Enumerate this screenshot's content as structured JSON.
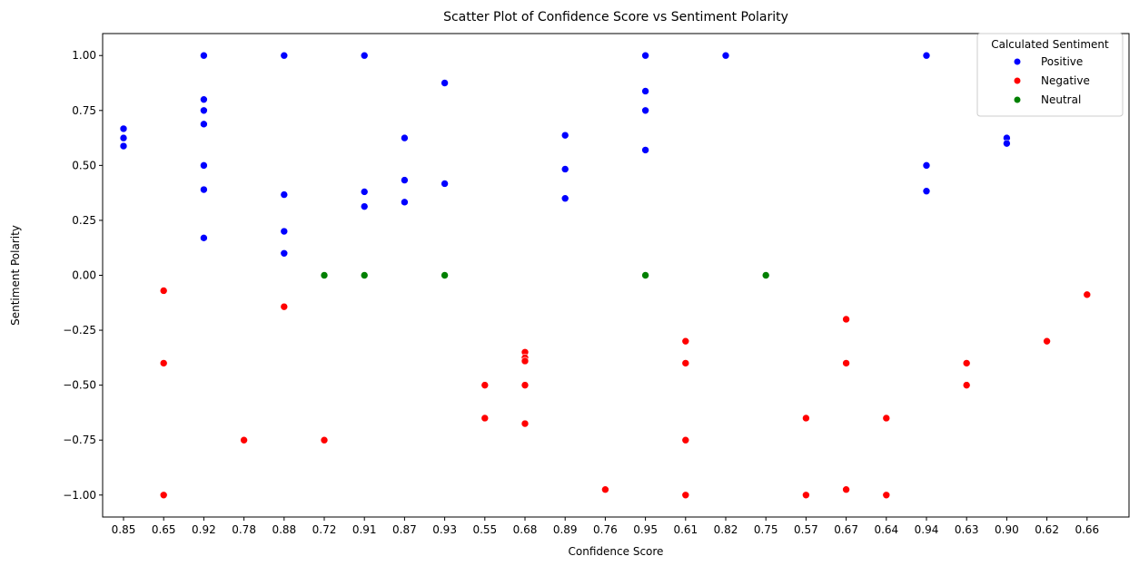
{
  "chart_data": {
    "type": "scatter",
    "title": "Scatter Plot of Confidence Score vs Sentiment Polarity",
    "xlabel": "Confidence Score",
    "ylabel": "Sentiment Polarity",
    "x_categories": [
      "0.85",
      "0.65",
      "0.92",
      "0.78",
      "0.88",
      "0.72",
      "0.91",
      "0.87",
      "0.93",
      "0.55",
      "0.68",
      "0.89",
      "0.76",
      "0.95",
      "0.61",
      "0.82",
      "0.75",
      "0.57",
      "0.67",
      "0.64",
      "0.94",
      "0.63",
      "0.90",
      "0.62",
      "0.66"
    ],
    "ylim": [
      -1.1,
      1.1
    ],
    "yticks": [
      "1.00",
      "0.75",
      "0.50",
      "0.25",
      "0.00",
      "−0.25",
      "−0.50",
      "−0.75",
      "−1.00"
    ],
    "ytick_values": [
      1.0,
      0.75,
      0.5,
      0.25,
      0.0,
      -0.25,
      -0.5,
      -0.75,
      -1.0
    ],
    "grid": false,
    "legend": {
      "title": "Calculated Sentiment",
      "placement": "top-right"
    },
    "series": [
      {
        "name": "Positive",
        "color": "#0000ff",
        "points": [
          [
            "0.85",
            0.667
          ],
          [
            "0.85",
            0.625
          ],
          [
            "0.85",
            0.588
          ],
          [
            "0.92",
            1.0
          ],
          [
            "0.92",
            0.8
          ],
          [
            "0.92",
            0.75
          ],
          [
            "0.92",
            0.688
          ],
          [
            "0.92",
            0.5
          ],
          [
            "0.92",
            0.39
          ],
          [
            "0.92",
            0.17
          ],
          [
            "0.88",
            1.0
          ],
          [
            "0.88",
            0.367
          ],
          [
            "0.88",
            0.2
          ],
          [
            "0.88",
            0.1
          ],
          [
            "0.91",
            1.0
          ],
          [
            "0.91",
            0.38
          ],
          [
            "0.91",
            0.313
          ],
          [
            "0.87",
            0.625
          ],
          [
            "0.87",
            0.433
          ],
          [
            "0.87",
            0.333
          ],
          [
            "0.93",
            0.875
          ],
          [
            "0.93",
            0.417
          ],
          [
            "0.89",
            0.637
          ],
          [
            "0.89",
            0.483
          ],
          [
            "0.89",
            0.35
          ],
          [
            "0.95",
            1.0
          ],
          [
            "0.95",
            0.838
          ],
          [
            "0.95",
            0.75
          ],
          [
            "0.95",
            0.57
          ],
          [
            "0.82",
            1.0
          ],
          [
            "0.94",
            1.0
          ],
          [
            "0.94",
            0.5
          ],
          [
            "0.94",
            0.383
          ],
          [
            "0.90",
            0.625
          ],
          [
            "0.90",
            0.6
          ]
        ]
      },
      {
        "name": "Negative",
        "color": "#ff0000",
        "points": [
          [
            "0.65",
            -0.07
          ],
          [
            "0.65",
            -0.4
          ],
          [
            "0.65",
            -1.0
          ],
          [
            "0.78",
            -0.75
          ],
          [
            "0.88",
            -0.143
          ],
          [
            "0.72",
            -0.75
          ],
          [
            "0.55",
            -0.5
          ],
          [
            "0.55",
            -0.65
          ],
          [
            "0.68",
            -0.35
          ],
          [
            "0.68",
            -0.375
          ],
          [
            "0.68",
            -0.39
          ],
          [
            "0.68",
            -0.5
          ],
          [
            "0.68",
            -0.675
          ],
          [
            "0.76",
            -0.975
          ],
          [
            "0.61",
            -0.3
          ],
          [
            "0.61",
            -0.4
          ],
          [
            "0.61",
            -0.75
          ],
          [
            "0.61",
            -1.0
          ],
          [
            "0.57",
            -0.65
          ],
          [
            "0.57",
            -1.0
          ],
          [
            "0.67",
            -0.2
          ],
          [
            "0.67",
            -0.4
          ],
          [
            "0.67",
            -0.975
          ],
          [
            "0.64",
            -0.65
          ],
          [
            "0.64",
            -1.0
          ],
          [
            "0.63",
            -0.4
          ],
          [
            "0.63",
            -0.5
          ],
          [
            "0.62",
            -0.3
          ],
          [
            "0.66",
            -0.088
          ]
        ]
      },
      {
        "name": "Neutral",
        "color": "#008000",
        "points": [
          [
            "0.72",
            0.0
          ],
          [
            "0.91",
            0.0
          ],
          [
            "0.93",
            0.0
          ],
          [
            "0.95",
            0.0
          ],
          [
            "0.75",
            0.0
          ]
        ]
      }
    ]
  }
}
